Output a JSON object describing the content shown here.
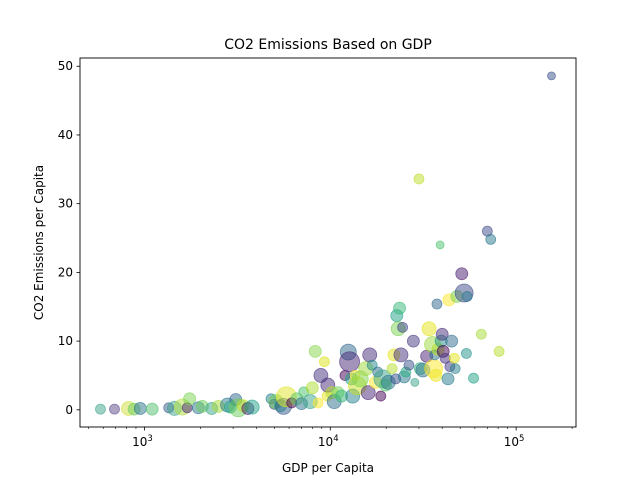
{
  "chart_data": {
    "type": "scatter",
    "title": "CO2 Emissions Based on GDP",
    "xlabel": "GDP per Capita",
    "ylabel": "CO2 Emissions per Capita",
    "xscale": "log",
    "xlim": [
      450,
      210000
    ],
    "ylim": [
      -2.5,
      51.2
    ],
    "x_ticks": [
      {
        "value": 1000,
        "base": "10",
        "exp": "3"
      },
      {
        "value": 10000,
        "base": "10",
        "exp": "4"
      },
      {
        "value": 100000,
        "base": "10",
        "exp": "5"
      }
    ],
    "y_ticks": [
      0,
      10,
      20,
      30,
      40,
      50
    ],
    "marker_alpha": 0.5,
    "points": [
      {
        "x": 580,
        "y": 0.1,
        "s": 5,
        "c": "#3aa48a"
      },
      {
        "x": 690,
        "y": 0.1,
        "s": 5,
        "c": "#5c4a8a"
      },
      {
        "x": 820,
        "y": 0.2,
        "s": 7,
        "c": "#cfe03e"
      },
      {
        "x": 880,
        "y": 0.1,
        "s": 6,
        "c": "#6ccd5a"
      },
      {
        "x": 950,
        "y": 0.2,
        "s": 6,
        "c": "#2b758e"
      },
      {
        "x": 1100,
        "y": 0.1,
        "s": 6,
        "c": "#4fbe6c"
      },
      {
        "x": 1350,
        "y": 0.3,
        "s": 5,
        "c": "#3b5c8c"
      },
      {
        "x": 1450,
        "y": 0.2,
        "s": 7,
        "c": "#3aa48a"
      },
      {
        "x": 1600,
        "y": 0.4,
        "s": 8,
        "c": "#b2dd3a"
      },
      {
        "x": 1700,
        "y": 0.3,
        "s": 5,
        "c": "#482475"
      },
      {
        "x": 1750,
        "y": 1.6,
        "s": 6,
        "c": "#7ad151"
      },
      {
        "x": 1950,
        "y": 0.3,
        "s": 6,
        "c": "#2a788e"
      },
      {
        "x": 2050,
        "y": 0.5,
        "s": 6,
        "c": "#6ccd5a"
      },
      {
        "x": 2300,
        "y": 0.2,
        "s": 6,
        "c": "#3aa48a"
      },
      {
        "x": 2500,
        "y": 0.5,
        "s": 6,
        "c": "#a5db36"
      },
      {
        "x": 2800,
        "y": 0.7,
        "s": 7,
        "c": "#2a788e"
      },
      {
        "x": 2900,
        "y": 0.4,
        "s": 6,
        "c": "#22a884"
      },
      {
        "x": 3100,
        "y": 1.5,
        "s": 6,
        "c": "#31688e"
      },
      {
        "x": 3200,
        "y": 0.3,
        "s": 9,
        "c": "#6ccd5a"
      },
      {
        "x": 3400,
        "y": 0.6,
        "s": 6,
        "c": "#c2df23"
      },
      {
        "x": 3600,
        "y": 0.2,
        "s": 6,
        "c": "#482475"
      },
      {
        "x": 3800,
        "y": 0.4,
        "s": 7,
        "c": "#1fa187"
      },
      {
        "x": 4800,
        "y": 1.6,
        "s": 5,
        "c": "#277f8e"
      },
      {
        "x": 5000,
        "y": 0.8,
        "s": 5,
        "c": "#3e4989"
      },
      {
        "x": 5100,
        "y": 1.2,
        "s": 7,
        "c": "#6ccd5a"
      },
      {
        "x": 5400,
        "y": 0.6,
        "s": 6,
        "c": "#1e9b8a"
      },
      {
        "x": 5600,
        "y": 0.5,
        "s": 8,
        "c": "#365c8d"
      },
      {
        "x": 5800,
        "y": 1.9,
        "s": 10,
        "c": "#e1e326"
      },
      {
        "x": 6200,
        "y": 1.0,
        "s": 5,
        "c": "#440154"
      },
      {
        "x": 6600,
        "y": 1.6,
        "s": 6,
        "c": "#5ec962"
      },
      {
        "x": 7000,
        "y": 0.9,
        "s": 6,
        "c": "#2c728e"
      },
      {
        "x": 7200,
        "y": 2.6,
        "s": 5,
        "c": "#4ac16d"
      },
      {
        "x": 7800,
        "y": 1.2,
        "s": 7,
        "c": "#3aa48a"
      },
      {
        "x": 8000,
        "y": 3.2,
        "s": 6,
        "c": "#addc30"
      },
      {
        "x": 8300,
        "y": 8.5,
        "s": 6,
        "c": "#86d549"
      },
      {
        "x": 8600,
        "y": 1.0,
        "s": 5,
        "c": "#fde725"
      },
      {
        "x": 8900,
        "y": 5.0,
        "s": 7,
        "c": "#46327e"
      },
      {
        "x": 9300,
        "y": 7.0,
        "s": 5,
        "c": "#dde318"
      },
      {
        "x": 9600,
        "y": 2.0,
        "s": 5,
        "c": "#e5e419"
      },
      {
        "x": 9700,
        "y": 3.6,
        "s": 7,
        "c": "#472c7a"
      },
      {
        "x": 10200,
        "y": 2.5,
        "s": 6,
        "c": "#b8de29"
      },
      {
        "x": 10500,
        "y": 1.2,
        "s": 7,
        "c": "#2e6e8e"
      },
      {
        "x": 11000,
        "y": 2.5,
        "s": 6,
        "c": "#73d056"
      },
      {
        "x": 11500,
        "y": 2.0,
        "s": 6,
        "c": "#35b779"
      },
      {
        "x": 12000,
        "y": 5.0,
        "s": 5,
        "c": "#440154"
      },
      {
        "x": 12500,
        "y": 8.4,
        "s": 8,
        "c": "#31688e"
      },
      {
        "x": 12700,
        "y": 7.0,
        "s": 10,
        "c": "#482878"
      },
      {
        "x": 13000,
        "y": 4.5,
        "s": 6,
        "c": "#1f9e89"
      },
      {
        "x": 13200,
        "y": 2.0,
        "s": 7,
        "c": "#277f8e"
      },
      {
        "x": 13600,
        "y": 5.0,
        "s": 5,
        "c": "#fde725"
      },
      {
        "x": 14000,
        "y": 3.5,
        "s": 9,
        "c": "#c8e020"
      },
      {
        "x": 14500,
        "y": 4.5,
        "s": 8,
        "c": "#7fd34e"
      },
      {
        "x": 15500,
        "y": 6.0,
        "s": 7,
        "c": "#9fda3a"
      },
      {
        "x": 16000,
        "y": 2.5,
        "s": 7,
        "c": "#482878"
      },
      {
        "x": 16300,
        "y": 8.0,
        "s": 7,
        "c": "#472d7b"
      },
      {
        "x": 16800,
        "y": 6.5,
        "s": 5,
        "c": "#23898e"
      },
      {
        "x": 17500,
        "y": 4.0,
        "s": 6,
        "c": "#fde725"
      },
      {
        "x": 18000,
        "y": 5.5,
        "s": 5,
        "c": "#2d708e"
      },
      {
        "x": 18700,
        "y": 2.0,
        "s": 5,
        "c": "#440154"
      },
      {
        "x": 19200,
        "y": 4.5,
        "s": 9,
        "c": "#3aa48a"
      },
      {
        "x": 19800,
        "y": 3.6,
        "s": 6,
        "c": "#56c667"
      },
      {
        "x": 20500,
        "y": 4.0,
        "s": 7,
        "c": "#2a788e"
      },
      {
        "x": 21500,
        "y": 6.0,
        "s": 5,
        "c": "#b5de2b"
      },
      {
        "x": 22000,
        "y": 8.0,
        "s": 6,
        "c": "#e7e419"
      },
      {
        "x": 22500,
        "y": 4.5,
        "s": 5,
        "c": "#3b528b"
      },
      {
        "x": 22800,
        "y": 13.7,
        "s": 6,
        "c": "#1fa187"
      },
      {
        "x": 23200,
        "y": 11.8,
        "s": 7,
        "c": "#7ad151"
      },
      {
        "x": 23600,
        "y": 14.8,
        "s": 6,
        "c": "#35b779"
      },
      {
        "x": 24000,
        "y": 8.0,
        "s": 7,
        "c": "#46327e"
      },
      {
        "x": 24500,
        "y": 12.0,
        "s": 5,
        "c": "#404688"
      },
      {
        "x": 25000,
        "y": 4.8,
        "s": 6,
        "c": "#2a788e"
      },
      {
        "x": 25500,
        "y": 5.5,
        "s": 5,
        "c": "#28ae80"
      },
      {
        "x": 26500,
        "y": 6.5,
        "s": 5,
        "c": "#3b528b"
      },
      {
        "x": 28000,
        "y": 10.0,
        "s": 6,
        "c": "#453781"
      },
      {
        "x": 28500,
        "y": 4.0,
        "s": 4,
        "c": "#3aa48a"
      },
      {
        "x": 30000,
        "y": 33.6,
        "s": 5,
        "c": "#bddf26"
      },
      {
        "x": 30500,
        "y": 6.0,
        "s": 6,
        "c": "#31b57b"
      },
      {
        "x": 31500,
        "y": 5.8,
        "s": 7,
        "c": "#2d708e"
      },
      {
        "x": 33000,
        "y": 7.8,
        "s": 6,
        "c": "#481f70"
      },
      {
        "x": 34000,
        "y": 11.8,
        "s": 7,
        "c": "#e5e419"
      },
      {
        "x": 35500,
        "y": 9.5,
        "s": 8,
        "c": "#9bd93c"
      },
      {
        "x": 36000,
        "y": 6.0,
        "s": 9,
        "c": "#fde725"
      },
      {
        "x": 36500,
        "y": 8.0,
        "s": 5,
        "c": "#2c728e"
      },
      {
        "x": 37000,
        "y": 5.0,
        "s": 6,
        "c": "#ece51b"
      },
      {
        "x": 37500,
        "y": 15.4,
        "s": 5,
        "c": "#31688e"
      },
      {
        "x": 38000,
        "y": 8.8,
        "s": 6,
        "c": "#b5de2b"
      },
      {
        "x": 39000,
        "y": 24.0,
        "s": 4,
        "c": "#4ac16d"
      },
      {
        "x": 39500,
        "y": 10.0,
        "s": 6,
        "c": "#21918c"
      },
      {
        "x": 40000,
        "y": 11.0,
        "s": 6,
        "c": "#472c7a"
      },
      {
        "x": 40500,
        "y": 8.5,
        "s": 6,
        "c": "#440154"
      },
      {
        "x": 41500,
        "y": 7.5,
        "s": 5,
        "c": "#46327e"
      },
      {
        "x": 43000,
        "y": 4.5,
        "s": 6,
        "c": "#287c8e"
      },
      {
        "x": 43500,
        "y": 16.0,
        "s": 6,
        "c": "#fde725"
      },
      {
        "x": 44000,
        "y": 6.3,
        "s": 5,
        "c": "#443a83"
      },
      {
        "x": 45000,
        "y": 10.0,
        "s": 6,
        "c": "#2f6c8e"
      },
      {
        "x": 46500,
        "y": 7.5,
        "s": 5,
        "c": "#e2e418"
      },
      {
        "x": 47000,
        "y": 6.0,
        "s": 5,
        "c": "#26828e"
      },
      {
        "x": 48000,
        "y": 16.5,
        "s": 6,
        "c": "#7ad151"
      },
      {
        "x": 51000,
        "y": 19.8,
        "s": 6,
        "c": "#481b6d"
      },
      {
        "x": 52500,
        "y": 17.0,
        "s": 9,
        "c": "#3e4989"
      },
      {
        "x": 54500,
        "y": 16.5,
        "s": 5,
        "c": "#2a788e"
      },
      {
        "x": 54000,
        "y": 8.2,
        "s": 5,
        "c": "#20928c"
      },
      {
        "x": 59000,
        "y": 4.6,
        "s": 5,
        "c": "#1fa187"
      },
      {
        "x": 65000,
        "y": 11.0,
        "s": 5,
        "c": "#a5db36"
      },
      {
        "x": 70000,
        "y": 26.0,
        "s": 5,
        "c": "#3e4989"
      },
      {
        "x": 73000,
        "y": 24.8,
        "s": 5,
        "c": "#2a788e"
      },
      {
        "x": 81000,
        "y": 8.5,
        "s": 5,
        "c": "#b5de2b"
      },
      {
        "x": 155000,
        "y": 48.6,
        "s": 4,
        "c": "#3b528b"
      }
    ]
  }
}
